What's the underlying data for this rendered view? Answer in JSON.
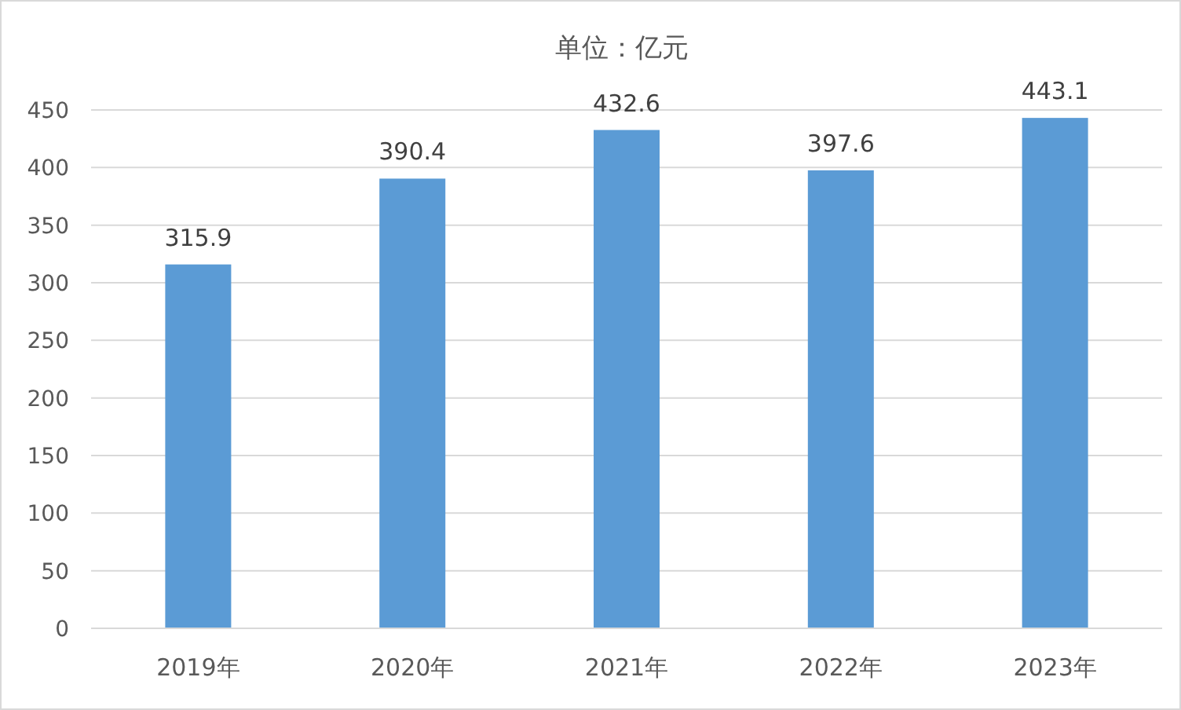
{
  "chart_data": {
    "type": "bar",
    "title": "单位：亿元",
    "categories": [
      "2019年",
      "2020年",
      "2021年",
      "2022年",
      "2023年"
    ],
    "values": [
      315.9,
      390.4,
      432.6,
      397.6,
      443.1
    ],
    "color": "#5b9bd5",
    "ylim": [
      0,
      450
    ],
    "yticks": [
      0,
      50,
      100,
      150,
      200,
      250,
      300,
      350,
      400,
      450
    ],
    "grid": "y",
    "data_labels": true
  }
}
